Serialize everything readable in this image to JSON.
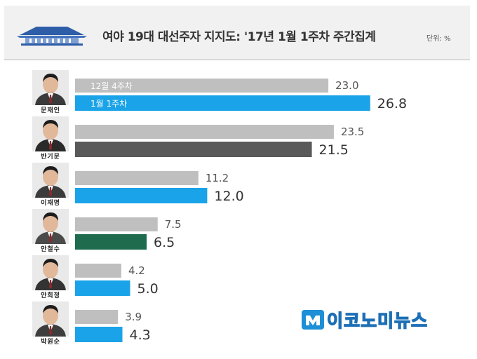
{
  "header": {
    "title": "여야 19대 대선주자 지지도: '17년 1월 1주차 주간집계",
    "unit": "단위: %"
  },
  "brand": {
    "text": "이코노미뉴스"
  },
  "colors": {
    "previous": "#bfbfbf",
    "current_default": "#1aa3e8",
    "current_ban": "#595959",
    "current_ahn": "#1e6b4e"
  },
  "chart_data": {
    "type": "bar",
    "orientation": "horizontal",
    "unit": "%",
    "categories": [
      "문재인",
      "반기문",
      "이재명",
      "안철수",
      "안희정",
      "박원순"
    ],
    "series": [
      {
        "name": "12월 4주차",
        "values": [
          23.0,
          23.5,
          11.2,
          7.5,
          4.2,
          3.9
        ]
      },
      {
        "name": "1월 1주차",
        "values": [
          26.8,
          21.5,
          12.0,
          6.5,
          5.0,
          4.3
        ]
      }
    ],
    "xlim": [
      0,
      30
    ],
    "grid": false,
    "legend": "inside-first-bars"
  }
}
